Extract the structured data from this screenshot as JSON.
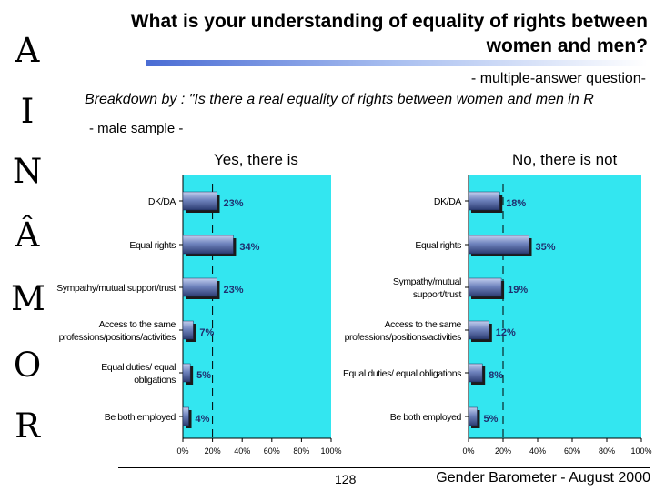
{
  "country_letters": [
    "R",
    "O",
    "M",
    "Â",
    "N",
    "I",
    "A"
  ],
  "title": "What is your understanding of equality of rights between women and men?",
  "subtitle": "- multiple-answer question-",
  "breakdown": "Breakdown by : \"Is there a real equality of rights between women and men in R",
  "sample": "- male sample -",
  "page_number": "128",
  "footer": "Gender Barometer - August 2000",
  "colors": {
    "plot_bg": "#33e6f0",
    "bar": "#6f83bd",
    "title_bar": "#4a6cd4"
  },
  "chart_data": [
    {
      "type": "bar",
      "orientation": "horizontal",
      "title": "Yes, there is",
      "categories": [
        "DK/DA",
        "Equal rights",
        "Sympathy/mutual support/trust",
        "Access to the same professions/positions/activities",
        "Equal duties/ equal obligations",
        "Be both employed"
      ],
      "category_lines": [
        [
          "DK/DA"
        ],
        [
          "Equal rights"
        ],
        [
          "Sympathy/mutual support/trust"
        ],
        [
          "Access to the same",
          "professions/positions/activities"
        ],
        [
          "Equal duties/ equal",
          "obligations"
        ],
        [
          "Be both employed"
        ]
      ],
      "values": [
        23,
        34,
        23,
        7,
        5,
        4
      ],
      "value_labels": [
        "23%",
        "34%",
        "23%",
        "7%",
        "5%",
        "4%"
      ],
      "xlim": [
        0,
        100
      ],
      "x_ticks": [
        "0%",
        "20%",
        "40%",
        "60%",
        "80%",
        "100%"
      ]
    },
    {
      "type": "bar",
      "orientation": "horizontal",
      "title": "No, there is not",
      "categories": [
        "DK/DA",
        "Equal rights",
        "Sympathy/mutual support/trust",
        "Access to the same professions/positions/activities",
        "Equal duties/ equal obligations",
        "Be both employed"
      ],
      "category_lines": [
        [
          "DK/DA"
        ],
        [
          "Equal rights"
        ],
        [
          "Sympathy/mutual",
          "support/trust"
        ],
        [
          "Access to the same",
          "professions/positions/activities"
        ],
        [
          "Equal duties/ equal obligations"
        ],
        [
          "Be both employed"
        ]
      ],
      "values": [
        18,
        35,
        19,
        12,
        8,
        5
      ],
      "value_labels": [
        "18%",
        "35%",
        "19%",
        "12%",
        "8%",
        "5%"
      ],
      "xlim": [
        0,
        100
      ],
      "x_ticks": [
        "0%",
        "20%",
        "40%",
        "60%",
        "80%",
        "100%"
      ]
    }
  ]
}
